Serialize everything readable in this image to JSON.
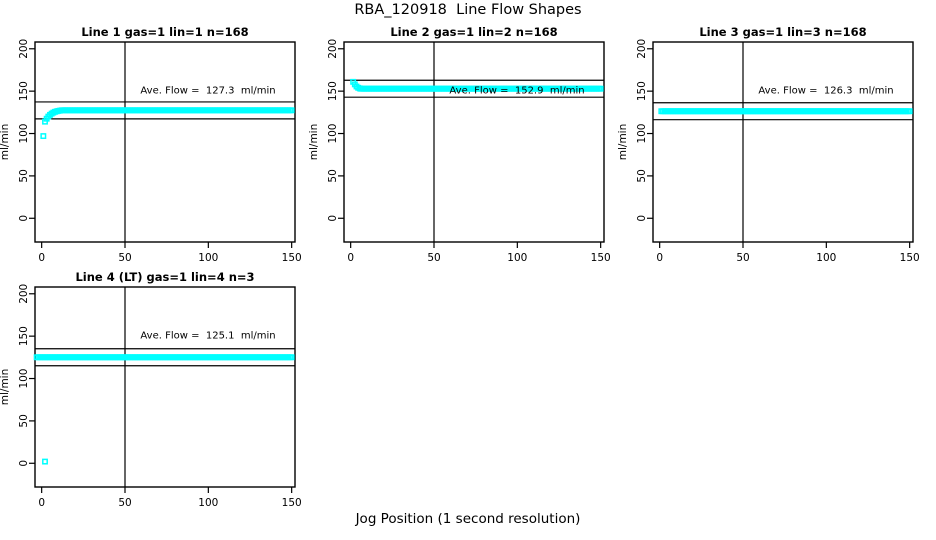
{
  "title": "RBA_120918  Line Flow Shapes",
  "xlabel": "Jog Position (1 second resolution)",
  "marker_color": "#00FFFF",
  "line_color": "#000000",
  "chart_data": [
    {
      "type": "scatter",
      "title": "Line 1 gas=1 lin=1 n=168",
      "annotation": "Ave. Flow =  127.3  ml/min",
      "ave_flow_ml_min": 127.3,
      "n_points": 168,
      "ylabel": "ml/min",
      "xlim": [
        -4,
        152
      ],
      "ylim": [
        -28,
        208
      ],
      "x_ticks": [
        0,
        50,
        100,
        150
      ],
      "y_ticks": [
        0,
        50,
        100,
        150,
        200
      ],
      "ref_lines_y": [
        137.3,
        117.3
      ],
      "vline_x": 50,
      "outliers": [
        [
          1,
          97
        ],
        [
          2,
          114
        ]
      ],
      "transient": [
        [
          3,
          117.5
        ],
        [
          4,
          120
        ],
        [
          5,
          122
        ],
        [
          6,
          123.5
        ],
        [
          7,
          124.7
        ],
        [
          8,
          125.6
        ],
        [
          9,
          126.2
        ],
        [
          10,
          126.7
        ],
        [
          11,
          127.0
        ]
      ],
      "plateau": {
        "x_start": 12,
        "x_end": 150,
        "x_step": 1,
        "y": 127.4
      }
    },
    {
      "type": "scatter",
      "title": "Line 2 gas=1 lin=2 n=168",
      "annotation": "Ave. Flow =  152.9  ml/min",
      "ave_flow_ml_min": 152.9,
      "n_points": 168,
      "ylabel": "ml/min",
      "xlim": [
        -4,
        152
      ],
      "ylim": [
        -28,
        208
      ],
      "x_ticks": [
        0,
        50,
        100,
        150
      ],
      "y_ticks": [
        0,
        50,
        100,
        150,
        200
      ],
      "ref_lines_y": [
        162.9,
        142.9
      ],
      "vline_x": 50,
      "outliers": [],
      "transient": [
        [
          1.5,
          161
        ],
        [
          2.5,
          158
        ],
        [
          3.5,
          155.5
        ],
        [
          4.5,
          154
        ],
        [
          5.5,
          153.3
        ]
      ],
      "plateau": {
        "x_start": 6,
        "x_end": 150,
        "x_step": 1,
        "y": 152.9
      }
    },
    {
      "type": "scatter",
      "title": "Line 3 gas=1 lin=3 n=168",
      "annotation": "Ave. Flow =  126.3  ml/min",
      "ave_flow_ml_min": 126.3,
      "n_points": 168,
      "ylabel": "ml/min",
      "xlim": [
        -4,
        152
      ],
      "ylim": [
        -28,
        208
      ],
      "x_ticks": [
        0,
        50,
        100,
        150
      ],
      "y_ticks": [
        0,
        50,
        100,
        150,
        200
      ],
      "ref_lines_y": [
        136.3,
        116.3
      ],
      "vline_x": 50,
      "outliers": [],
      "transient": [],
      "plateau": {
        "x_start": 1,
        "x_end": 150,
        "x_step": 1,
        "y": 126.3
      }
    },
    {
      "type": "scatter",
      "title": "Line 4 (LT) gas=1 lin=4 n=3",
      "annotation": "Ave. Flow =  125.1  ml/min",
      "ave_flow_ml_min": 125.1,
      "n_points": 3,
      "ylabel": "ml/min",
      "xlim": [
        -4,
        152
      ],
      "ylim": [
        -28,
        208
      ],
      "x_ticks": [
        0,
        50,
        100,
        150
      ],
      "y_ticks": [
        0,
        50,
        100,
        150,
        200
      ],
      "ref_lines_y": [
        135.1,
        115.1
      ],
      "vline_x": 50,
      "outliers": [
        [
          2,
          2
        ]
      ],
      "transient": [],
      "plateau": {
        "x_start": -3,
        "x_end": 150,
        "x_step": 1,
        "y": 125.1
      }
    }
  ]
}
